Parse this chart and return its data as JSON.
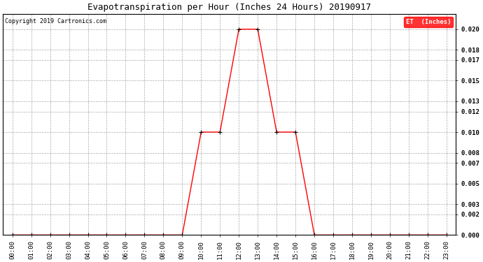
{
  "title": "Evapotranspiration per Hour (Inches 24 Hours) 20190917",
  "copyright": "Copyright 2019 Cartronics.com",
  "legend_label": "ET  (Inches)",
  "legend_bg": "#ff0000",
  "legend_fg": "#ffffff",
  "x_labels": [
    "00:00",
    "01:00",
    "02:00",
    "03:00",
    "04:00",
    "05:00",
    "06:00",
    "07:00",
    "08:00",
    "09:00",
    "10:00",
    "11:00",
    "12:00",
    "13:00",
    "14:00",
    "15:00",
    "16:00",
    "17:00",
    "18:00",
    "19:00",
    "20:00",
    "21:00",
    "22:00",
    "23:00"
  ],
  "x_values": [
    0,
    1,
    2,
    3,
    4,
    5,
    6,
    7,
    8,
    9,
    10,
    11,
    12,
    13,
    14,
    15,
    16,
    17,
    18,
    19,
    20,
    21,
    22,
    23
  ],
  "y_values": [
    0,
    0,
    0,
    0,
    0,
    0,
    0,
    0,
    0,
    0,
    0.01,
    0.01,
    0.02,
    0.02,
    0.01,
    0.01,
    0,
    0,
    0,
    0,
    0,
    0,
    0,
    0
  ],
  "y_ticks": [
    0.0,
    0.002,
    0.003,
    0.005,
    0.007,
    0.008,
    0.01,
    0.012,
    0.013,
    0.015,
    0.017,
    0.018,
    0.02
  ],
  "line_color": "#ff0000",
  "marker_color": "#000000",
  "grid_color": "#aaaaaa",
  "bg_color": "#ffffff",
  "ylim": [
    0,
    0.0215
  ],
  "xlim": [
    -0.5,
    23.5
  ],
  "title_fontsize": 9,
  "tick_fontsize": 6.5,
  "copyright_fontsize": 6
}
